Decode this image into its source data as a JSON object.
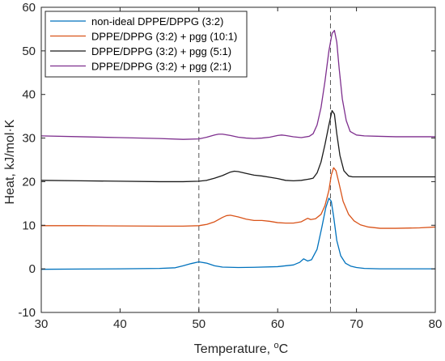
{
  "chart_data": {
    "type": "line",
    "xlabel": "Temperature, ",
    "xlabel_unit": "°C",
    "ylabel": "Heat, kJ/mol·K",
    "xlim": [
      30,
      80
    ],
    "ylim": [
      -10,
      60
    ],
    "xticks": [
      30,
      40,
      50,
      60,
      70,
      80
    ],
    "yticks": [
      -10,
      0,
      10,
      20,
      30,
      40,
      50,
      60
    ],
    "xtick_labels": [
      "30",
      "40",
      "50",
      "60",
      "70",
      "80"
    ],
    "ytick_labels": [
      "-10",
      "0",
      "10",
      "20",
      "30",
      "40",
      "50",
      "60"
    ],
    "grid": false,
    "legend_position": "top-left",
    "reference_lines_x": [
      50,
      66.7
    ],
    "series": [
      {
        "name": "non-ideal DPPE/DPPG (3:2)",
        "color": "#0072BD",
        "x": [
          30,
          35,
          40,
          45,
          47,
          48,
          49,
          50,
          51,
          52,
          53,
          55,
          57,
          60,
          62,
          62.8,
          63.3,
          63.8,
          64.3,
          65,
          65.6,
          66.1,
          66.5,
          66.8,
          67.1,
          67.5,
          68,
          68.6,
          69.3,
          70,
          71,
          73,
          75,
          80
        ],
        "values": [
          -0.1,
          -0.05,
          0,
          0.1,
          0.25,
          0.7,
          1.2,
          1.6,
          1.3,
          0.7,
          0.4,
          0.3,
          0.35,
          0.5,
          0.9,
          1.5,
          2.3,
          1.8,
          2.1,
          4.5,
          9.5,
          14,
          16.2,
          15.5,
          12,
          6.5,
          3,
          1.3,
          0.6,
          0.3,
          0.1,
          0,
          0,
          0
        ]
      },
      {
        "name": "DPPE/DPPG (3:2) + pgg (10:1)",
        "color": "#D95319",
        "x": [
          30,
          35,
          40,
          45,
          48,
          50,
          51,
          52,
          53,
          53.5,
          54,
          55,
          56,
          57,
          58,
          59,
          60,
          61,
          62,
          63,
          63.8,
          64.2,
          64.8,
          65.5,
          66,
          66.5,
          66.8,
          67.1,
          67.4,
          67.8,
          68.3,
          69,
          69.7,
          70.5,
          71.5,
          73,
          75,
          78,
          80
        ],
        "values": [
          9.9,
          9.9,
          9.85,
          9.8,
          9.8,
          9.9,
          10.2,
          10.8,
          11.8,
          12.2,
          12.3,
          11.9,
          11.4,
          11.1,
          11.1,
          10.9,
          10.6,
          10.5,
          10.5,
          10.8,
          11.6,
          11.3,
          11.5,
          12.5,
          14.5,
          18,
          21.5,
          23.2,
          22.5,
          19.5,
          15.5,
          12.5,
          11,
          10.1,
          9.6,
          9.3,
          9.3,
          9.4,
          9.6
        ]
      },
      {
        "name": "DPPE/DPPG (3:2) + pgg (5:1)",
        "color": "#1a1a1a",
        "x": [
          30,
          35,
          40,
          45,
          48,
          50,
          51,
          52,
          53,
          54,
          54.5,
          55,
          56,
          57,
          58,
          59,
          60,
          61,
          62,
          63,
          64,
          64.5,
          65,
          65.5,
          66,
          66.5,
          66.9,
          67.2,
          67.5,
          67.9,
          68.4,
          69,
          69.5,
          70,
          72,
          75,
          80
        ],
        "values": [
          20.3,
          20.2,
          20.1,
          20,
          20,
          20.1,
          20.3,
          20.8,
          21.4,
          22.2,
          22.4,
          22.3,
          21.9,
          21.5,
          21.3,
          21,
          20.7,
          20.3,
          20.2,
          20.3,
          20.6,
          20.8,
          22,
          24.5,
          28.5,
          33,
          36.3,
          35.5,
          31,
          26,
          22.5,
          21.3,
          21.1,
          21.1,
          21.1,
          21.1,
          21.1
        ]
      },
      {
        "name": "DPPE/DPPG (3:2) + pgg (2:1)",
        "color": "#7E2F8E",
        "x": [
          30,
          35,
          40,
          45,
          48,
          50,
          51,
          52,
          52.5,
          53,
          54,
          55,
          56,
          57,
          58,
          59,
          60,
          60.5,
          61,
          62,
          63,
          64,
          64.5,
          65,
          65.5,
          66,
          66.5,
          66.9,
          67.2,
          67.5,
          67.8,
          68.2,
          68.7,
          69.2,
          70,
          71,
          73,
          75,
          80
        ],
        "values": [
          30.5,
          30.3,
          30.1,
          29.9,
          29.7,
          29.8,
          30.2,
          30.7,
          30.9,
          30.9,
          30.6,
          30.2,
          30.0,
          29.9,
          30.0,
          30.2,
          30.6,
          30.7,
          30.6,
          30.3,
          30.1,
          30.4,
          31,
          33,
          37,
          43,
          50,
          54,
          54.7,
          52,
          46,
          39,
          34,
          31.5,
          30.7,
          30.5,
          30.4,
          30.3,
          30.3
        ]
      }
    ]
  }
}
